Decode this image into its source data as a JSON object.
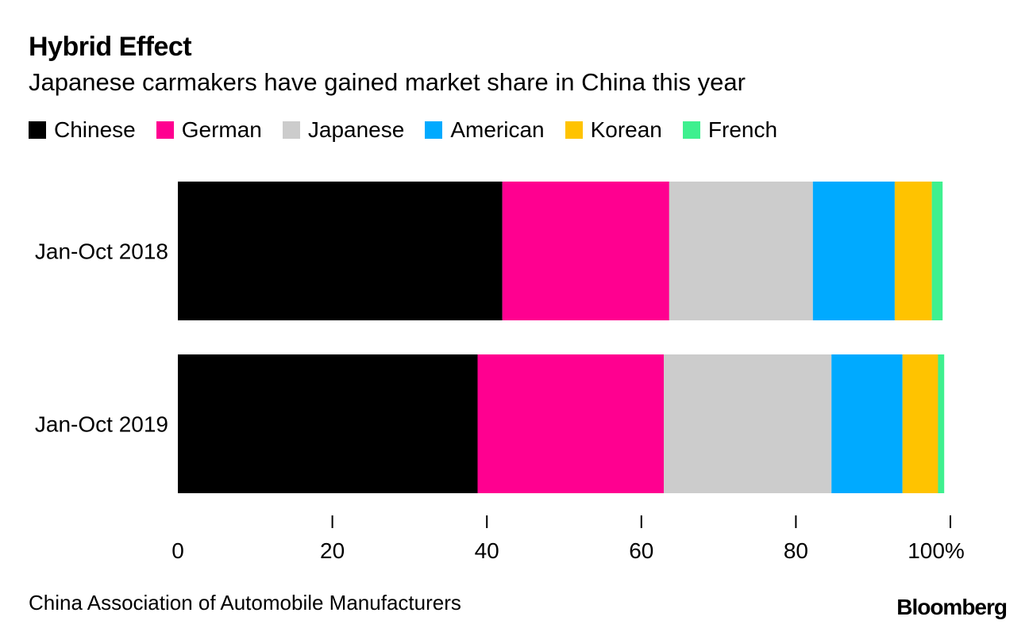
{
  "title": "Hybrid Effect",
  "subtitle": "Japanese carmakers have gained market share in China this year",
  "source": "China Association of Automobile Manufacturers",
  "brand": "Bloomberg",
  "colors": {
    "Chinese": "#000000",
    "German": "#ff0090",
    "Japanese": "#cccccc",
    "American": "#00aaff",
    "Korean": "#ffc300",
    "French": "#3ef08f"
  },
  "legend": [
    "Chinese",
    "German",
    "Japanese",
    "American",
    "Korean",
    "French"
  ],
  "chart_data": {
    "type": "bar",
    "orientation": "horizontal",
    "stacked": true,
    "categories": [
      "Jan-Oct 2018",
      "Jan-Oct 2019"
    ],
    "series": [
      {
        "name": "Chinese",
        "values": [
          42.0,
          38.8
        ]
      },
      {
        "name": "German",
        "values": [
          21.6,
          24.1
        ]
      },
      {
        "name": "Japanese",
        "values": [
          18.6,
          21.7
        ]
      },
      {
        "name": "American",
        "values": [
          10.6,
          9.2
        ]
      },
      {
        "name": "Korean",
        "values": [
          4.8,
          4.6
        ]
      },
      {
        "name": "French",
        "values": [
          1.4,
          0.8
        ]
      }
    ],
    "xlim": [
      0,
      100
    ],
    "xticks": [
      0,
      20,
      40,
      60,
      80,
      100
    ],
    "xtick_labels": [
      "0",
      "20",
      "40",
      "60",
      "80",
      "100%"
    ],
    "title": "Hybrid Effect",
    "xlabel": "",
    "ylabel": "",
    "legend_position": "top"
  }
}
